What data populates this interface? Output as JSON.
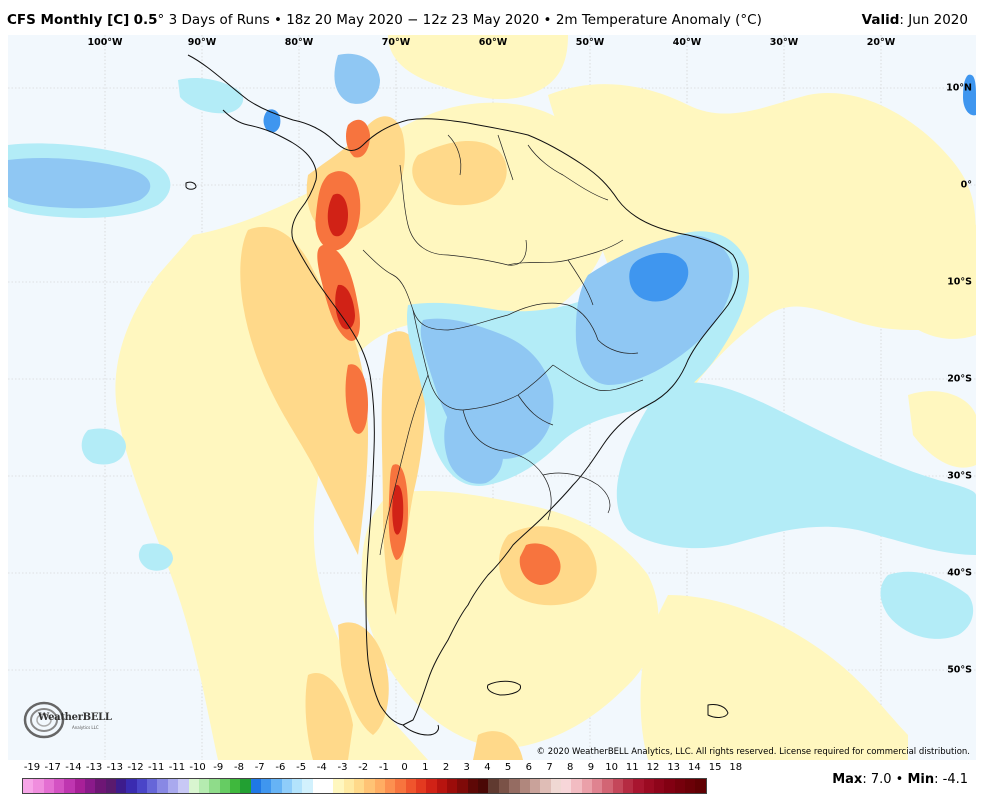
{
  "header": {
    "model": "CFS Monthly [C]",
    "resolution": "0.5",
    "degree_symbol": "°",
    "description": "3 Days of Runs • 18z 20 May 2020 − 12z 23 May 2020 • 2m Temperature Anomaly (°C)",
    "valid_label": "Valid",
    "valid_value": ": Jun 2020"
  },
  "map": {
    "longitude_labels": [
      "100°W",
      "90°W",
      "80°W",
      "70°W",
      "60°W",
      "50°W",
      "40°W",
      "30°W",
      "20°W"
    ],
    "latitude_labels": [
      "10°N",
      "0°",
      "10°S",
      "20°S",
      "30°S",
      "40°S",
      "50°S"
    ],
    "copyright": "© 2020 WeatherBELL Analytics, LLC. All rights reserved. License required for commercial distribution.",
    "logo_text": "WeatherBELL",
    "logo_sub": "Analytics LLC"
  },
  "colorbar": {
    "ticks": [
      "-19",
      "-17",
      "-14",
      "-13",
      "-13",
      "-12",
      "-11",
      "-11",
      "-10",
      "-9",
      "-8",
      "-7",
      "-6",
      "-5",
      "-4",
      "-3",
      "-2",
      "-1",
      "0",
      "1",
      "2",
      "3",
      "4",
      "5",
      "6",
      "7",
      "8",
      "9",
      "10",
      "11",
      "12",
      "13",
      "14",
      "15",
      "18"
    ],
    "colors": [
      "#f7a6e8",
      "#f08ede",
      "#e46fd2",
      "#d452c3",
      "#bf36b0",
      "#a82098",
      "#8a1a8a",
      "#6e1675",
      "#5a1a6e",
      "#3d1c8c",
      "#3a2bb0",
      "#4a45c8",
      "#6666d8",
      "#8888e4",
      "#a9a9ee",
      "#c8c8f5",
      "#d9f5d0",
      "#b5ebb0",
      "#8fdc8a",
      "#66cc63",
      "#3fb83d",
      "#22a032",
      "#1f78e6",
      "#3f96ef",
      "#66b3f5",
      "#8fcdfa",
      "#b3e3fc",
      "#d2f1fd",
      "#ffffff",
      "#ffffff",
      "#fff7bf",
      "#ffeaa3",
      "#ffd98a",
      "#ffc375",
      "#ffad63",
      "#fc9050",
      "#f7743e",
      "#ef552d",
      "#e33a20",
      "#d12216",
      "#b8140f",
      "#9c0c0a",
      "#7f0a08",
      "#5e0806",
      "#4a0805",
      "#603a30",
      "#7a5247",
      "#956c62",
      "#b0877d",
      "#c9a29a",
      "#dfbdb6",
      "#f0d8d3",
      "#f7d6d9",
      "#f2bcc2",
      "#eaa0a9",
      "#df8390",
      "#d26574",
      "#c4475a",
      "#b52b42",
      "#a8152f",
      "#9b0a22",
      "#8e041a",
      "#820012",
      "#76000c",
      "#6b0007",
      "#600003"
    ],
    "max_label": "Max",
    "max_value": ": 7.0",
    "separator": " • ",
    "min_label": "Min",
    "min_value": ": -4.1"
  },
  "colors": {
    "ocean_background": "#f2f8fd",
    "warm_light": "#fff7bf",
    "warm_medium": "#ffd98a",
    "warm_strong": "#f7743e",
    "warm_extreme": "#d12216",
    "cool_light": "#b3ecf7",
    "cool_medium": "#8fc7f3",
    "cool_strong": "#3f96ef"
  }
}
